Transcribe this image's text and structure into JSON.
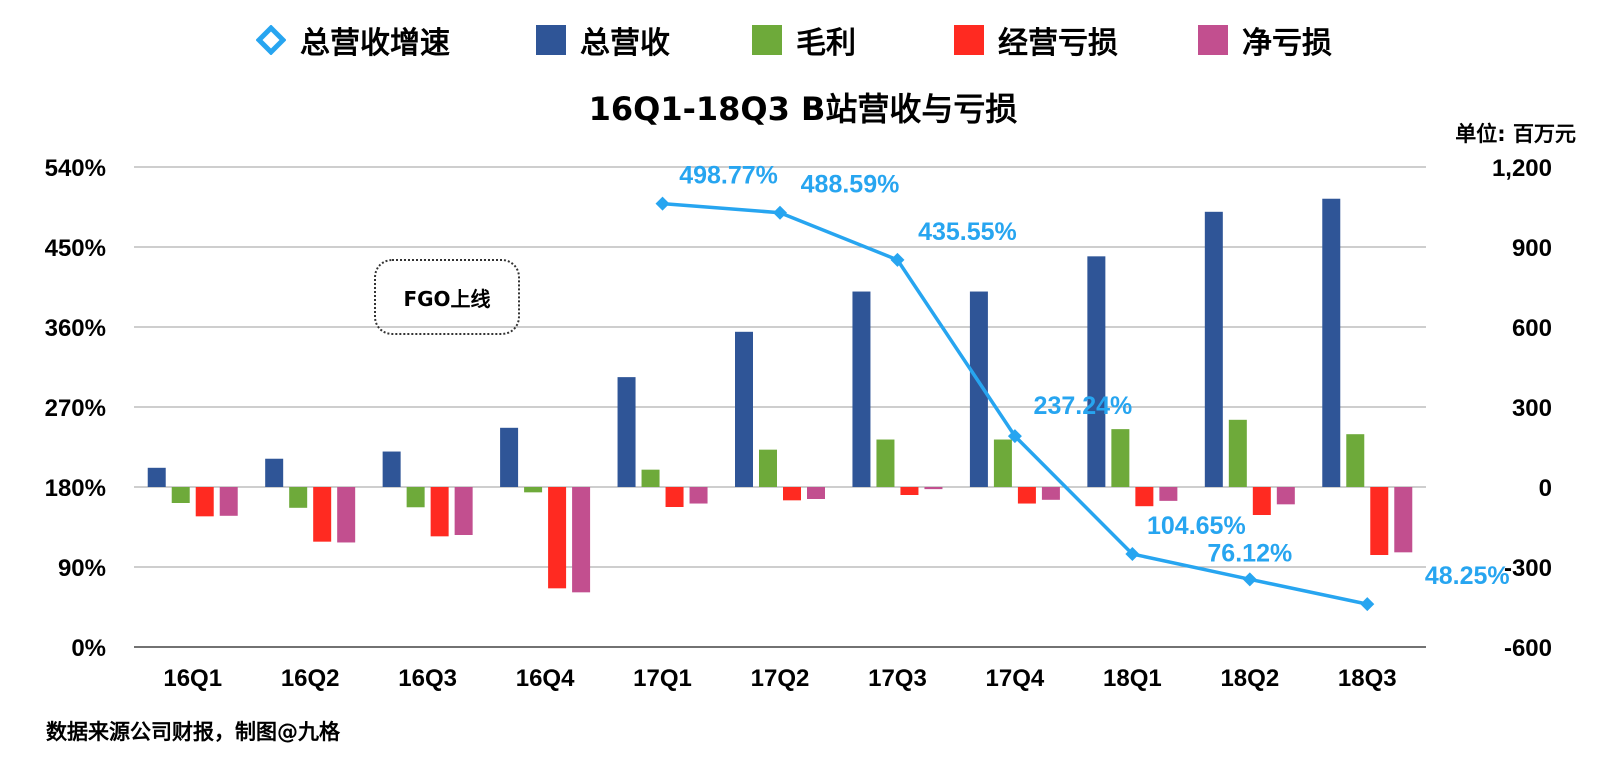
{
  "legend": {
    "growth": "总营收增速",
    "revenue": "总营收",
    "gross_profit": "毛利",
    "operating_loss": "经营亏损",
    "net_loss": "净亏损"
  },
  "annotation": "FGO上线",
  "source": "数据来源公司财报，制图@九格",
  "colors": {
    "revenue": "#2f5597",
    "gross_profit": "#6eaa3a",
    "operating_loss": "#ff2a21",
    "net_loss": "#c24f8f",
    "growth": "#27a5f0",
    "grid": "#b0b0b0"
  },
  "chart_data": {
    "type": "bar",
    "title": "16Q1-18Q3 B站营收与亏损",
    "unit_label": "单位: 百万元",
    "categories": [
      "16Q1",
      "16Q2",
      "16Q3",
      "16Q4",
      "17Q1",
      "17Q2",
      "17Q3",
      "17Q4",
      "18Q1",
      "18Q2",
      "18Q3"
    ],
    "y_right": {
      "min": -600,
      "max": 1200,
      "ticks": [
        1200,
        900,
        600,
        300,
        0,
        -300,
        -600
      ],
      "tick_labels": [
        "1,200",
        "900",
        "600",
        "300",
        "0",
        "-300",
        "-600"
      ]
    },
    "y_left": {
      "min": 0,
      "max": 540,
      "ticks": [
        540,
        450,
        360,
        270,
        180,
        90,
        0
      ],
      "tick_labels": [
        "540%",
        "450%",
        "360%",
        "270%",
        "180%",
        "90%",
        "0%"
      ]
    },
    "series": [
      {
        "name": "总营收",
        "key": "revenue",
        "axis": "right",
        "values": [
          72,
          106,
          133,
          222,
          412,
          582,
          733,
          733,
          865,
          1032,
          1081
        ]
      },
      {
        "name": "毛利",
        "key": "gross_profit",
        "axis": "right",
        "values": [
          -60,
          -78,
          -76,
          -20,
          65,
          140,
          178,
          178,
          217,
          252,
          198
        ]
      },
      {
        "name": "经营亏损",
        "key": "operating_loss",
        "axis": "right",
        "values": [
          -110,
          -205,
          -185,
          -380,
          -75,
          -50,
          -30,
          -62,
          -72,
          -105,
          -255
        ]
      },
      {
        "name": "净亏损",
        "key": "net_loss",
        "axis": "right",
        "values": [
          -108,
          -208,
          -180,
          -395,
          -62,
          -45,
          -8,
          -48,
          -52,
          -65,
          -245
        ]
      },
      {
        "name": "总营收增速",
        "key": "growth",
        "axis": "left",
        "type": "line",
        "values": [
          null,
          null,
          null,
          null,
          498.77,
          488.59,
          435.55,
          237.24,
          104.65,
          76.12,
          48.25
        ],
        "labels": [
          null,
          null,
          null,
          null,
          "498.77%",
          "488.59%",
          "435.55%",
          "237.24%",
          "104.65%",
          "76.12%",
          "48.25%"
        ]
      }
    ]
  }
}
